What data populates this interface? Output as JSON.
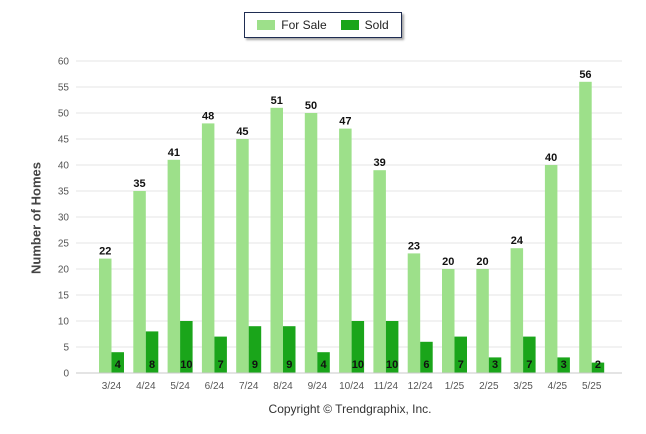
{
  "chart_data": {
    "type": "bar",
    "categories": [
      "3/24",
      "4/24",
      "5/24",
      "6/24",
      "7/24",
      "8/24",
      "9/24",
      "10/24",
      "11/24",
      "12/24",
      "1/25",
      "2/25",
      "3/25",
      "4/25",
      "5/25"
    ],
    "series": [
      {
        "name": "For Sale",
        "color": "#9de08a",
        "values": [
          22,
          35,
          41,
          48,
          45,
          51,
          50,
          47,
          39,
          23,
          20,
          20,
          24,
          40,
          56
        ]
      },
      {
        "name": "Sold",
        "color": "#1aa51a",
        "values": [
          4,
          8,
          10,
          7,
          9,
          9,
          4,
          10,
          10,
          6,
          7,
          3,
          7,
          3,
          2
        ]
      }
    ],
    "ylabel": "Number of Homes",
    "ylim": [
      0,
      60
    ],
    "yticks": [
      0,
      5,
      10,
      15,
      20,
      25,
      30,
      35,
      40,
      45,
      50,
      55,
      60
    ],
    "grid": true,
    "legend_position": "top-center",
    "data_labels": true
  },
  "footer": {
    "copyright": "Copyright © Trendgraphix, Inc."
  }
}
